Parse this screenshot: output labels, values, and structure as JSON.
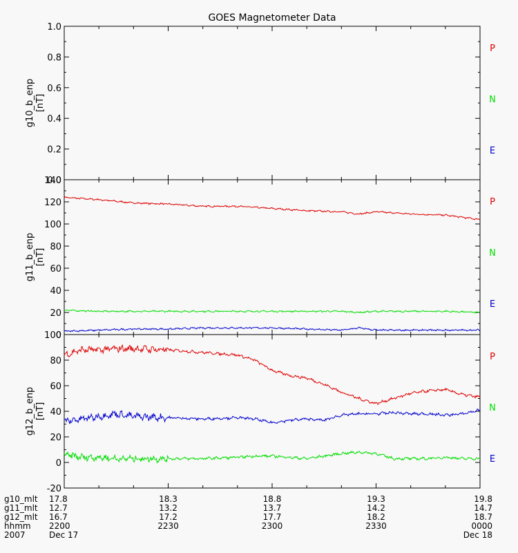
{
  "title": "GOES Magnetometer Data",
  "colors": {
    "P": "#dd0000",
    "N": "#00dd00",
    "E": "#0000cc",
    "axes": "#000000",
    "background": "#f8f8f8"
  },
  "chart_data": [
    {
      "type": "line",
      "id": "g10",
      "ylabel": "g10_b_enp",
      "yunit": "[nT]",
      "ylim": [
        0.0,
        1.0
      ],
      "yticks": [
        "0.0",
        "0.2",
        "0.4",
        "0.6",
        "0.8",
        "1.0"
      ],
      "legend": [
        "P",
        "N",
        "E"
      ],
      "series": []
    },
    {
      "type": "line",
      "id": "g11",
      "ylabel": "g11_b_enp",
      "yunit": "[nT]",
      "ylim": [
        0,
        140
      ],
      "yticks": [
        "0",
        "20",
        "40",
        "60",
        "80",
        "100",
        "120",
        "140"
      ],
      "legend": [
        "P",
        "N",
        "E"
      ],
      "x_minutes": [
        0,
        10,
        20,
        30,
        40,
        50,
        60,
        70,
        80,
        85,
        90,
        100,
        110,
        120
      ],
      "series": [
        {
          "name": "P",
          "values": [
            124,
            122,
            119,
            118,
            116,
            116,
            114,
            112,
            111,
            109,
            111,
            109,
            108,
            104
          ]
        },
        {
          "name": "N",
          "values": [
            22,
            21,
            21,
            21,
            21,
            21,
            21,
            21,
            21,
            20,
            21,
            21,
            21,
            20
          ]
        },
        {
          "name": "E",
          "values": [
            3,
            4,
            5,
            5,
            6,
            6,
            6,
            5,
            4,
            6,
            4,
            4,
            4,
            4
          ]
        }
      ]
    },
    {
      "type": "line",
      "id": "g12",
      "ylabel": "g12_b_enp",
      "yunit": "[nT]",
      "ylim": [
        -20,
        100
      ],
      "yticks": [
        "-20",
        "0",
        "20",
        "40",
        "60",
        "80",
        "100"
      ],
      "legend": [
        "P",
        "N",
        "E"
      ],
      "x_minutes": [
        0,
        5,
        10,
        15,
        20,
        30,
        40,
        50,
        55,
        60,
        65,
        70,
        75,
        80,
        85,
        90,
        95,
        100,
        105,
        110,
        115,
        120
      ],
      "series": [
        {
          "name": "P",
          "values": [
            84,
            88,
            88,
            89,
            89,
            88,
            86,
            84,
            80,
            72,
            68,
            66,
            61,
            55,
            50,
            46,
            50,
            54,
            56,
            57,
            53,
            51
          ]
        },
        {
          "name": "N",
          "values": [
            6,
            4,
            4,
            3,
            3,
            3,
            3,
            4,
            5,
            5,
            4,
            3,
            5,
            7,
            8,
            7,
            3,
            3,
            3,
            4,
            3,
            3
          ]
        },
        {
          "name": "E",
          "values": [
            32,
            34,
            36,
            38,
            36,
            35,
            34,
            35,
            34,
            31,
            33,
            34,
            33,
            37,
            38,
            38,
            39,
            38,
            38,
            37,
            38,
            41
          ]
        }
      ]
    }
  ],
  "x_axis": {
    "range_minutes": [
      0,
      120
    ],
    "row_labels": [
      "g10_mlt",
      "g11_mlt",
      "g12_mlt",
      "hhmm",
      "2007"
    ],
    "ticks": [
      {
        "minute": 0,
        "values": [
          "17.8",
          "12.7",
          "16.7",
          "2200",
          "Dec 17"
        ]
      },
      {
        "minute": 30,
        "values": [
          "18.3",
          "13.2",
          "17.2",
          "2230",
          ""
        ]
      },
      {
        "minute": 60,
        "values": [
          "18.8",
          "13.7",
          "17.7",
          "2300",
          ""
        ]
      },
      {
        "minute": 90,
        "values": [
          "19.3",
          "14.2",
          "18.2",
          "2330",
          ""
        ]
      },
      {
        "minute": 120,
        "values": [
          "19.8",
          "14.7",
          "18.7",
          "0000",
          "Dec 18"
        ]
      }
    ],
    "minor_tick_minutes": 10
  }
}
